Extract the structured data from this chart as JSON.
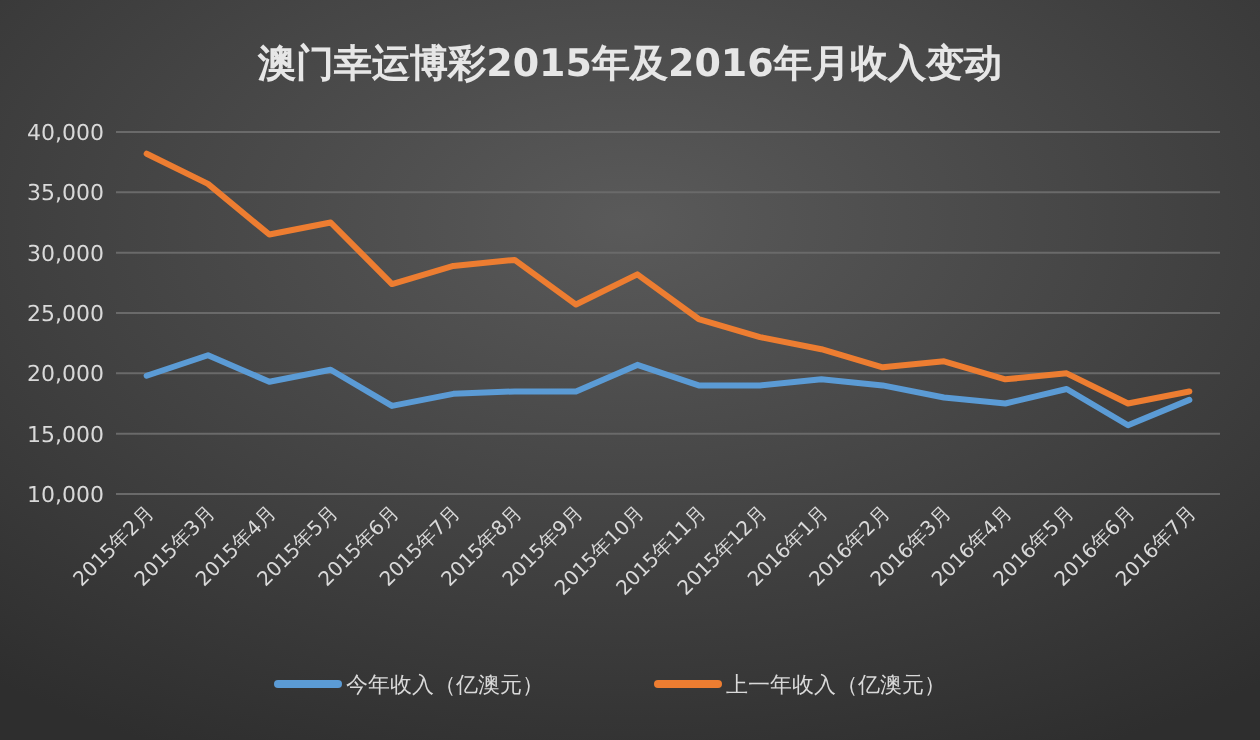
{
  "chart_data": {
    "type": "line",
    "title": "澳门幸运博彩2015年及2016年月收入变动",
    "categories": [
      "2015年2月",
      "2015年3月",
      "2015年4月",
      "2015年5月",
      "2015年6月",
      "2015年7月",
      "2015年8月",
      "2015年9月",
      "2015年10月",
      "2015年11月",
      "2015年12月",
      "2016年1月",
      "2016年2月",
      "2016年3月",
      "2016年4月",
      "2016年5月",
      "2016年6月",
      "2016年7月"
    ],
    "series": [
      {
        "name": "今年收入（亿澳元）",
        "color": "#5b9bd5",
        "values": [
          19800,
          21500,
          19300,
          20300,
          17300,
          18300,
          18500,
          18500,
          20700,
          19000,
          19000,
          19500,
          19000,
          18000,
          17500,
          18700,
          15700,
          17800
        ]
      },
      {
        "name": "上一年收入（亿澳元）",
        "color": "#ed7d31",
        "values": [
          38200,
          35700,
          31500,
          32500,
          27400,
          28900,
          29400,
          25700,
          28200,
          24500,
          23000,
          22000,
          20500,
          21000,
          19500,
          20000,
          17500,
          18500
        ]
      }
    ],
    "ylim": [
      10000,
      40000
    ],
    "yticks": [
      {
        "value": 10000,
        "label": "10,000"
      },
      {
        "value": 15000,
        "label": "15,000"
      },
      {
        "value": 20000,
        "label": "20,000"
      },
      {
        "value": 25000,
        "label": "25,000"
      },
      {
        "value": 30000,
        "label": "30,000"
      },
      {
        "value": 35000,
        "label": "35,000"
      },
      {
        "value": 40000,
        "label": "40,000"
      }
    ],
    "grid": "y",
    "legend": "bottom",
    "marker": "none",
    "line_style": "solid"
  }
}
